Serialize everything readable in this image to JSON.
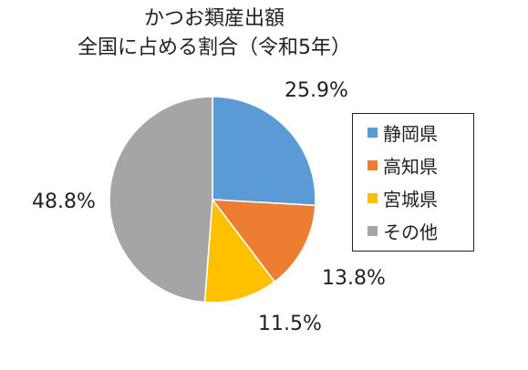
{
  "chart_data": {
    "type": "pie",
    "title_lines": [
      "かつお類産出額",
      "全国に占める割合（令和5年）"
    ],
    "slices": [
      {
        "label": "静岡県",
        "value": 25.9,
        "value_label": "25.9%",
        "color": "#5B9BD5"
      },
      {
        "label": "高知県",
        "value": 13.8,
        "value_label": "13.8%",
        "color": "#ED7D31"
      },
      {
        "label": "宮城県",
        "value": 11.5,
        "value_label": "11.5%",
        "color": "#FFC000"
      },
      {
        "label": "その他",
        "value": 48.8,
        "value_label": "48.8%",
        "color": "#A5A5A5"
      }
    ],
    "start_angle_deg": 0,
    "direction": "clockwise",
    "legend_position": "right"
  }
}
